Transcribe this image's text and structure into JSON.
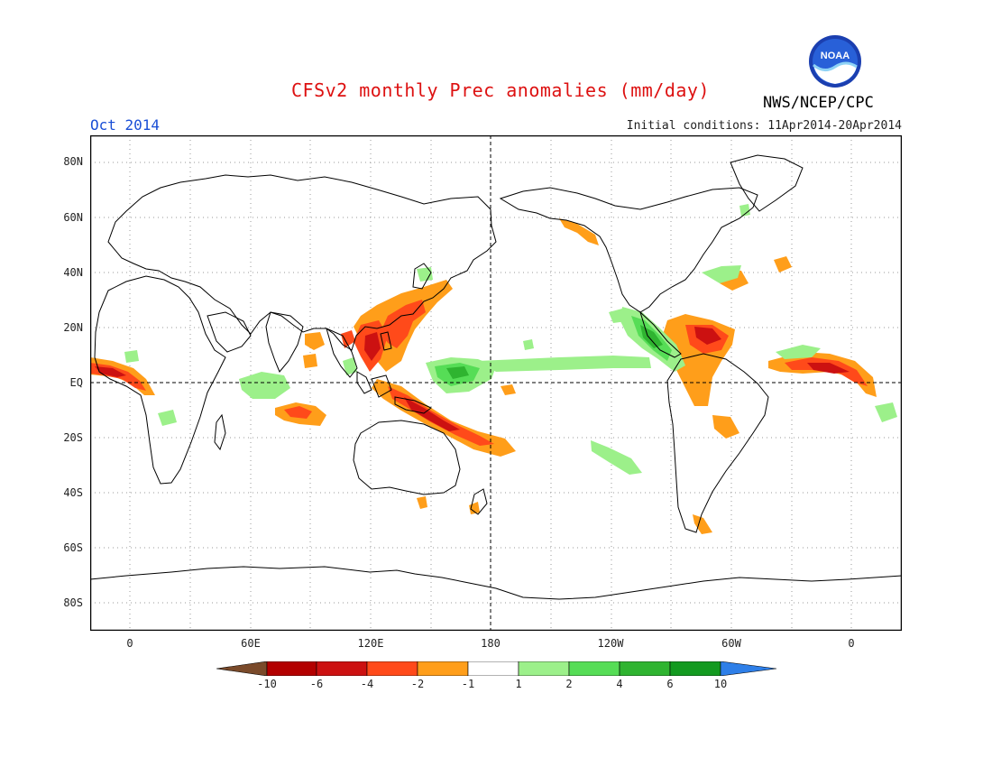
{
  "header": {
    "title": "CFSv2 monthly Prec anomalies (mm/day)",
    "agency": "NWS/NCEP/CPC",
    "logo_text": "NOAA",
    "month": "Oct 2014",
    "initial_conditions": "Initial conditions: 11Apr2014-20Apr2014"
  },
  "map": {
    "projection": "equirectangular",
    "lon_ticks": [
      "0",
      "60E",
      "120E",
      "180",
      "120W",
      "60W",
      "0"
    ],
    "lat_ticks": [
      "80N",
      "60N",
      "40N",
      "20N",
      "EQ",
      "20S",
      "40S",
      "60S",
      "80S"
    ],
    "grid": "dotted",
    "dashed_reference_lines": [
      "EQ",
      "180"
    ]
  },
  "colorbar": {
    "labels": [
      "-10",
      "-6",
      "-4",
      "-2",
      "-1",
      "1",
      "2",
      "4",
      "6",
      "10"
    ],
    "colors": [
      "#7a4a2a",
      "#b30000",
      "#cc1111",
      "#ff4a1a",
      "#ff9e1a",
      "#ffffff",
      "#9cf08a",
      "#56dd56",
      "#2fb430",
      "#139a20",
      "#2e7fe8"
    ]
  },
  "anomaly_colors": {
    "dry_strong": "#cc1111",
    "dry_moderate": "#ff4a1a",
    "dry_weak": "#ff9e1a",
    "wet_weak": "#9cf08a",
    "wet_moderate": "#56dd56",
    "wet_strong": "#2fb430"
  }
}
